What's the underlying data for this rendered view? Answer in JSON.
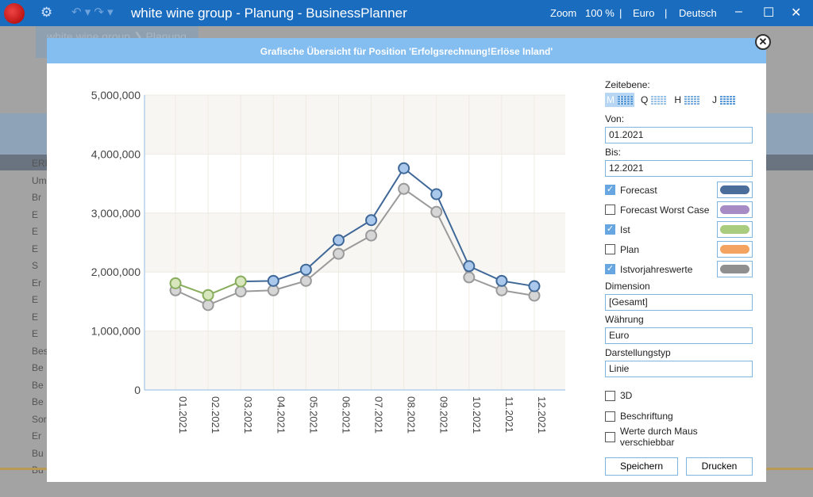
{
  "titlebar": {
    "title": "white wine group - Planung - BusinessPlanner",
    "zoom_label": "Zoom",
    "zoom_value": "100 %",
    "currency": "Euro",
    "language": "Deutsch"
  },
  "background": {
    "breadcrumb": "white wine group ❯ Planung",
    "rows": [
      "ERF",
      "Um",
      "Br",
      "E",
      "E",
      "E",
      "S",
      "Er",
      "E",
      "E",
      "E",
      "Bes",
      "Be",
      "Be",
      "Be",
      "Sor",
      "Er",
      "Bu",
      "Bu"
    ]
  },
  "dialog": {
    "title": "Grafische Übersicht für Position 'Erfolgsrechnung!Erlöse Inland'"
  },
  "panel": {
    "zeitebene_label": "Zeitebene:",
    "zeitebene_options": [
      "M",
      "Q",
      "H",
      "J"
    ],
    "zeitebene_selected": "M",
    "von_label": "Von:",
    "von_value": "01.2021",
    "bis_label": "Bis:",
    "bis_value": "12.2021",
    "series": [
      {
        "label": "Forecast",
        "checked": true,
        "color": "#4a6d9c"
      },
      {
        "label": "Forecast Worst Case",
        "checked": false,
        "color": "#a78bc4"
      },
      {
        "label": "Ist",
        "checked": true,
        "color": "#a9cc7e"
      },
      {
        "label": "Plan",
        "checked": false,
        "color": "#f4a460"
      },
      {
        "label": "Istvorjahreswerte",
        "checked": true,
        "color": "#8f8f8f"
      }
    ],
    "dimension_label": "Dimension",
    "dimension_value": "[Gesamt]",
    "waehrung_label": "Währung",
    "waehrung_value": "Euro",
    "darstellung_label": "Darstellungstyp",
    "darstellung_value": "Linie",
    "options": [
      {
        "label": "3D",
        "checked": false
      },
      {
        "label": "Beschriftung",
        "checked": false
      },
      {
        "label": "Werte durch Maus verschiebbar",
        "checked": false
      }
    ],
    "save_label": "Speichern",
    "print_label": "Drucken"
  },
  "chart_data": {
    "type": "line",
    "categories": [
      "01.2021",
      "02.2021",
      "03.2021",
      "04.2021",
      "05.2021",
      "06.2021",
      "07.2021",
      "08.2021",
      "09.2021",
      "10.2021",
      "11.2021",
      "12.2021"
    ],
    "ylim": [
      0,
      5000000
    ],
    "yticks": [
      "0",
      "1,000,000",
      "2,000,000",
      "3,000,000",
      "4,000,000",
      "5,000,000"
    ],
    "series": [
      {
        "name": "Istvorjahreswerte",
        "color": "#9a9a9a",
        "fill": "#d6d6d6",
        "values": [
          1690000,
          1440000,
          1670000,
          1690000,
          1850000,
          2310000,
          2620000,
          3410000,
          3020000,
          1910000,
          1690000,
          1600000
        ]
      },
      {
        "name": "Forecast",
        "color": "#3f6898",
        "fill": "#a9c8ec",
        "values": [
          null,
          null,
          1840000,
          1850000,
          2040000,
          2540000,
          2880000,
          3760000,
          3320000,
          2100000,
          1850000,
          1760000
        ]
      },
      {
        "name": "Ist",
        "color": "#88ad5c",
        "fill": "#d7e6bd",
        "values": [
          1810000,
          1610000,
          1840000,
          null,
          null,
          null,
          null,
          null,
          null,
          null,
          null,
          null
        ]
      }
    ]
  }
}
